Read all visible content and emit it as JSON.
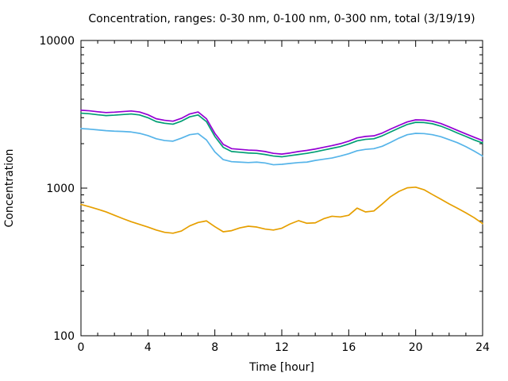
{
  "chart_data": {
    "type": "line",
    "title": "Concentration, ranges: 0-30 nm, 0-100 nm, 0-300 nm, total (3/19/19)",
    "xlabel": "Time [hour]",
    "ylabel": "Concentration",
    "x_range": [
      0,
      24
    ],
    "y_range": [
      100,
      10000
    ],
    "y_scale": "log",
    "grid": false,
    "legend_position": "none",
    "x_major_ticks": [
      0,
      4,
      8,
      12,
      16,
      20,
      24
    ],
    "x_minor_step": 1,
    "y_major_ticks": [
      100,
      1000,
      10000
    ],
    "x_step": 0.5,
    "series": [
      {
        "name": "total",
        "color": "#9400d3",
        "values": [
          3370,
          3340,
          3290,
          3250,
          3270,
          3300,
          3330,
          3280,
          3140,
          2950,
          2880,
          2840,
          2970,
          3180,
          3280,
          2950,
          2350,
          1980,
          1850,
          1830,
          1810,
          1800,
          1770,
          1720,
          1700,
          1730,
          1770,
          1800,
          1840,
          1890,
          1940,
          2000,
          2080,
          2190,
          2240,
          2260,
          2360,
          2510,
          2660,
          2810,
          2900,
          2890,
          2840,
          2740,
          2600,
          2460,
          2330,
          2210,
          2100
        ]
      },
      {
        "name": "0-300 nm",
        "color": "#009e73",
        "values": [
          3220,
          3190,
          3140,
          3100,
          3120,
          3150,
          3180,
          3130,
          3000,
          2820,
          2750,
          2710,
          2840,
          3040,
          3130,
          2820,
          2240,
          1890,
          1770,
          1750,
          1730,
          1720,
          1690,
          1650,
          1630,
          1660,
          1690,
          1720,
          1760,
          1810,
          1860,
          1910,
          1990,
          2090,
          2140,
          2160,
          2260,
          2400,
          2550,
          2700,
          2790,
          2780,
          2730,
          2630,
          2500,
          2360,
          2240,
          2120,
          2020
        ]
      },
      {
        "name": "0-100 nm",
        "color": "#56b4e9",
        "values": [
          2530,
          2510,
          2480,
          2450,
          2430,
          2420,
          2400,
          2350,
          2270,
          2160,
          2100,
          2080,
          2180,
          2300,
          2340,
          2120,
          1760,
          1560,
          1510,
          1500,
          1490,
          1500,
          1480,
          1440,
          1450,
          1470,
          1490,
          1500,
          1540,
          1570,
          1600,
          1650,
          1710,
          1790,
          1830,
          1850,
          1920,
          2040,
          2180,
          2300,
          2350,
          2340,
          2300,
          2230,
          2130,
          2030,
          1910,
          1780,
          1650
        ]
      },
      {
        "name": "0-30 nm",
        "color": "#e69f00",
        "values": [
          775,
          748,
          720,
          690,
          655,
          622,
          592,
          568,
          545,
          520,
          502,
          495,
          512,
          555,
          585,
          600,
          548,
          506,
          515,
          538,
          552,
          545,
          528,
          520,
          535,
          572,
          602,
          578,
          582,
          620,
          645,
          638,
          655,
          732,
          690,
          700,
          780,
          875,
          950,
          1005,
          1015,
          975,
          905,
          842,
          782,
          730,
          680,
          630,
          575
        ]
      }
    ]
  }
}
